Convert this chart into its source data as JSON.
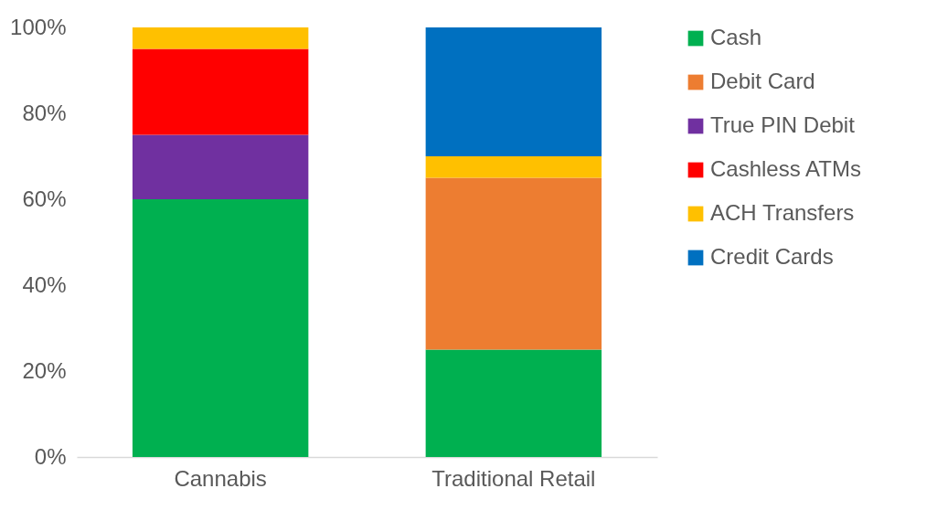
{
  "chart_data": {
    "type": "bar",
    "stacked": true,
    "categories": [
      "Cannabis",
      "Traditional Retail"
    ],
    "series": [
      {
        "name": "Cash",
        "color": "#00b050",
        "values": [
          60,
          25
        ]
      },
      {
        "name": "Debit Card",
        "color": "#ed7d31",
        "values": [
          0,
          40
        ]
      },
      {
        "name": "True PIN Debit",
        "color": "#7030a0",
        "values": [
          15,
          0
        ]
      },
      {
        "name": "Cashless ATMs",
        "color": "#ff0000",
        "values": [
          20,
          0
        ]
      },
      {
        "name": "ACH Transfers",
        "color": "#ffc000",
        "values": [
          5,
          5
        ]
      },
      {
        "name": "Credit Cards",
        "color": "#0070c0",
        "values": [
          0,
          30
        ]
      }
    ],
    "ylim": [
      0,
      100
    ],
    "yticks": [
      {
        "value": 0,
        "label": "0%"
      },
      {
        "value": 20,
        "label": "20%"
      },
      {
        "value": 40,
        "label": "40%"
      },
      {
        "value": 60,
        "label": "60%"
      },
      {
        "value": 80,
        "label": "80%"
      },
      {
        "value": 100,
        "label": "100%"
      }
    ],
    "grid": false,
    "legend": "right"
  }
}
